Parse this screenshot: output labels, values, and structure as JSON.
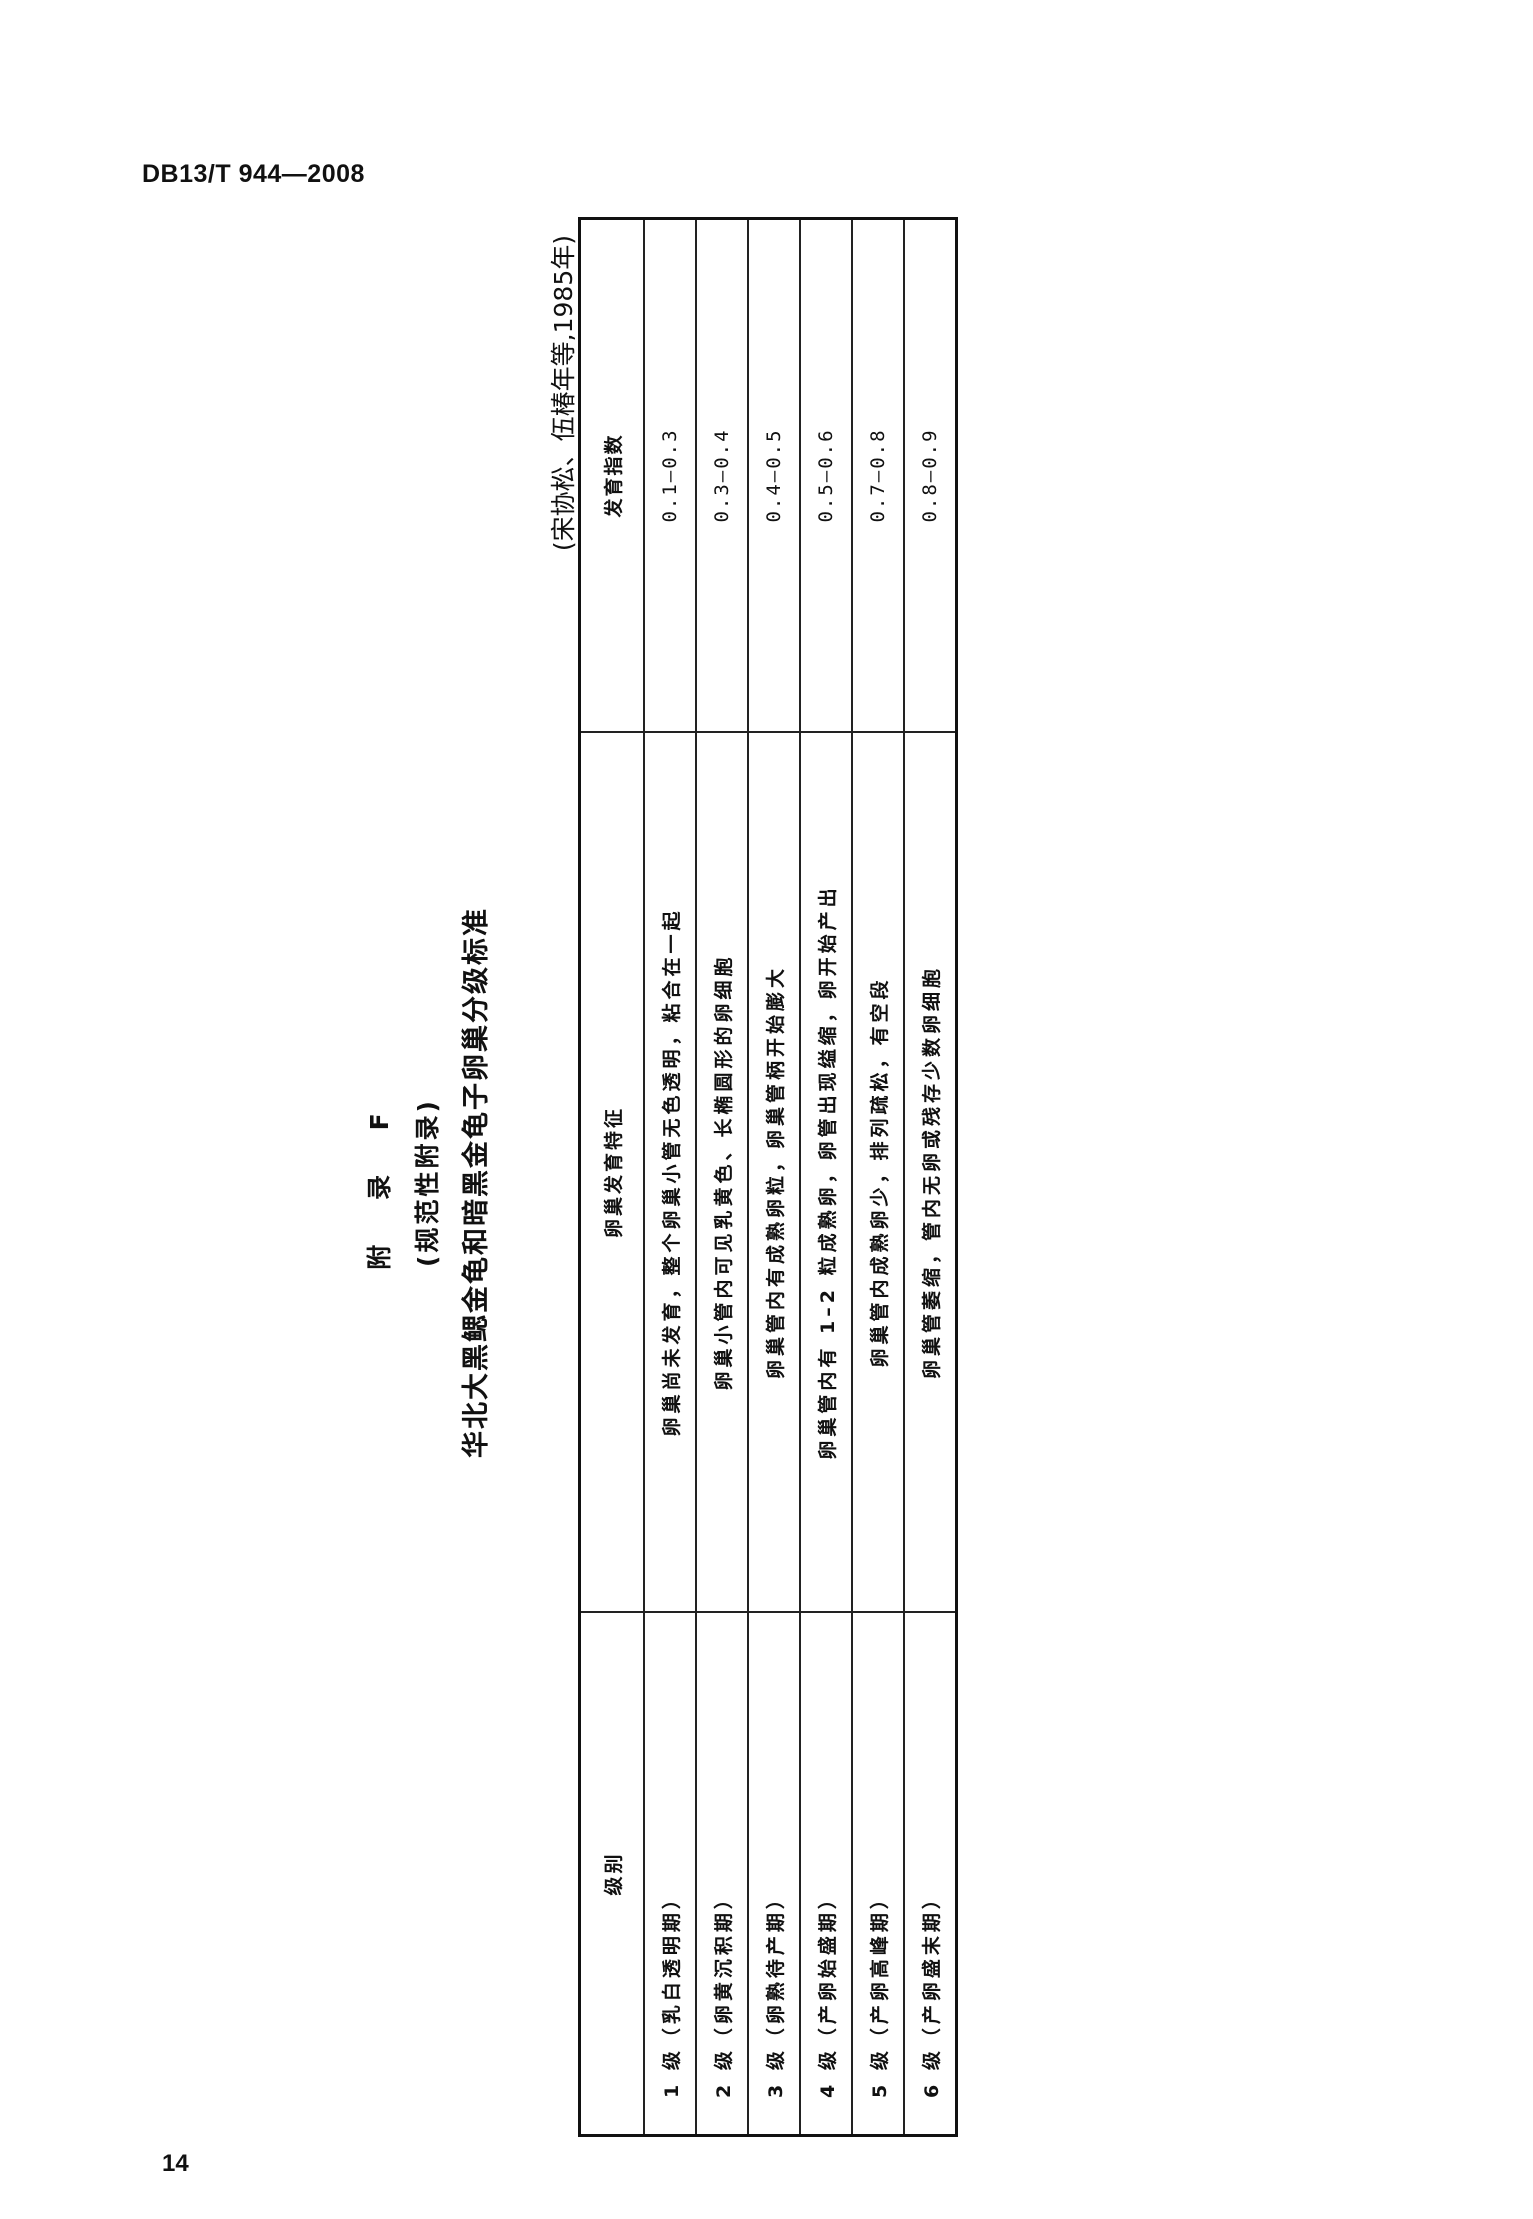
{
  "header": {
    "doc_code": "DB13/T 944—2008"
  },
  "annex": {
    "label": "附 录 F",
    "type": "(规范性附录)",
    "title": "华北大黑鳃金龟和暗黑金龟子卵巢分级标准",
    "citation": "(宋协松、伍椿年等,1985年)"
  },
  "table": {
    "headers": [
      "级别",
      "卵巢发育特征",
      "发育指数"
    ],
    "rows": [
      [
        "1 级（乳白透明期）",
        "卵巢尚未发育，整个卵巢小管无色透明，粘合在一起",
        "0.1–0.3"
      ],
      [
        "2 级（卵黄沉积期）",
        "卵巢小管内可见乳黄色、长椭圆形的卵细胞",
        "0.3–0.4"
      ],
      [
        "3 级（卵熟待产期）",
        "卵巢管内有成熟卵粒，卵巢管柄开始膨大",
        "0.4–0.5"
      ],
      [
        "4 级（产卵始盛期）",
        "卵巢管内有 1–2 粒成熟卵，卵管出现缢缩，卵开始产出",
        "0.5–0.6"
      ],
      [
        "5 级（产卵高峰期）",
        "卵巢管内成熟卵少，排列疏松，有空段",
        "0.7–0.8"
      ],
      [
        "6 级（产卵盛末期）",
        "卵巢管萎缩，管内无卵或残存少数卵细胞",
        "0.8–0.9"
      ]
    ]
  },
  "footer": {
    "page_number": "14"
  }
}
